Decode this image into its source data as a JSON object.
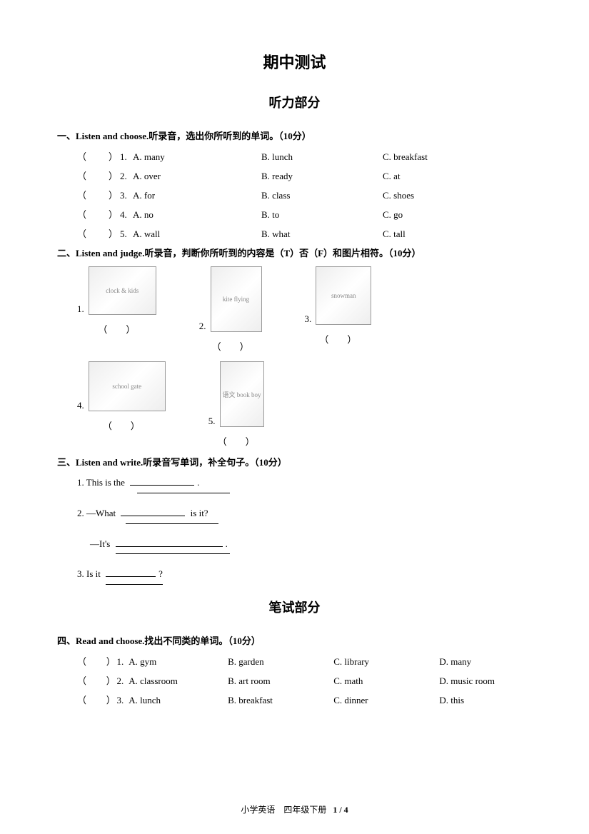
{
  "title": "期中测试",
  "listening_title": "听力部分",
  "writing_title": "笔试部分",
  "sec1": {
    "heading": "一、Listen and choose.听录音，选出你所听到的单词。（10分）",
    "rows": [
      {
        "n": "1.",
        "a": "A. many",
        "b": "B. lunch",
        "c": "C. breakfast"
      },
      {
        "n": "2.",
        "a": "A. over",
        "b": "B. ready",
        "c": "C. at"
      },
      {
        "n": "3.",
        "a": "A. for",
        "b": "B. class",
        "c": "C. shoes"
      },
      {
        "n": "4.",
        "a": "A. no",
        "b": "B. to",
        "c": "C. go"
      },
      {
        "n": "5.",
        "a": "A. wall",
        "b": "B. what",
        "c": "C. tall"
      }
    ]
  },
  "sec2": {
    "heading": "二、Listen and judge.听录音，判断你所听到的内容是（T）否（F）和图片相符。（10分）",
    "items": [
      {
        "n": "1.",
        "w": 95,
        "h": 68,
        "label": "clock & kids"
      },
      {
        "n": "2.",
        "w": 72,
        "h": 92,
        "label": "kite flying"
      },
      {
        "n": "3.",
        "w": 78,
        "h": 82,
        "label": "snowman"
      },
      {
        "n": "4.",
        "w": 108,
        "h": 70,
        "label": "school gate"
      },
      {
        "n": "5.",
        "w": 62,
        "h": 92,
        "label": "语文 book boy"
      }
    ],
    "paren": "（　　）"
  },
  "sec3": {
    "heading": "三、Listen and write.听录音写单词，补全句子。（10分）",
    "q1_pre": "1. This is the ",
    "q1_post": ".",
    "q2_pre": "2. —What ",
    "q2_post": " is it?",
    "q2b_pre": "—It's ",
    "q2b_post": ".",
    "q3_pre": "3. Is it ",
    "q3_post": "?"
  },
  "sec4": {
    "heading": "四、Read and choose.找出不同类的单词。（10分）",
    "rows": [
      {
        "n": "1.",
        "a": "A. gym",
        "b": "B. garden",
        "c": "C. library",
        "d": "D. many"
      },
      {
        "n": "2.",
        "a": "A. classroom",
        "b": "B. art room",
        "c": "C. math",
        "d": "D. music room"
      },
      {
        "n": "3.",
        "a": "A. lunch",
        "b": "B. breakfast",
        "c": "C. dinner",
        "d": "D. this"
      }
    ]
  },
  "footer_text": "小学英语　四年级下册",
  "footer_page": "1 / 4",
  "paren_open": "（",
  "paren_close": "）"
}
